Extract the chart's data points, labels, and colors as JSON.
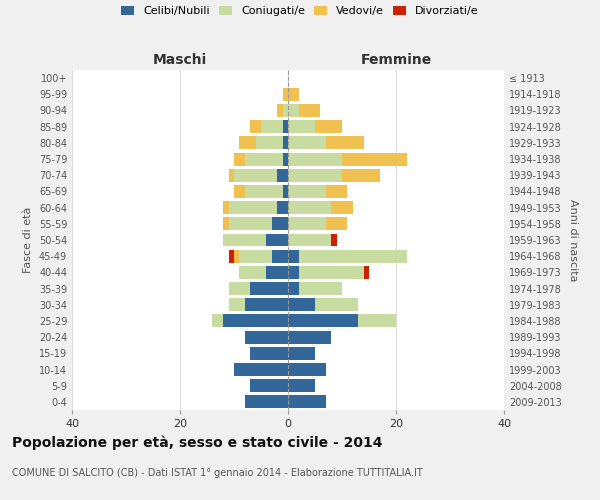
{
  "age_groups": [
    "0-4",
    "5-9",
    "10-14",
    "15-19",
    "20-24",
    "25-29",
    "30-34",
    "35-39",
    "40-44",
    "45-49",
    "50-54",
    "55-59",
    "60-64",
    "65-69",
    "70-74",
    "75-79",
    "80-84",
    "85-89",
    "90-94",
    "95-99",
    "100+"
  ],
  "birth_years": [
    "2009-2013",
    "2004-2008",
    "1999-2003",
    "1994-1998",
    "1989-1993",
    "1984-1988",
    "1979-1983",
    "1974-1978",
    "1969-1973",
    "1964-1968",
    "1959-1963",
    "1954-1958",
    "1949-1953",
    "1944-1948",
    "1939-1943",
    "1934-1938",
    "1929-1933",
    "1924-1928",
    "1919-1923",
    "1914-1918",
    "≤ 1913"
  ],
  "maschi_celibe": [
    8,
    7,
    10,
    7,
    8,
    12,
    8,
    7,
    4,
    3,
    4,
    3,
    2,
    1,
    2,
    1,
    1,
    1,
    0,
    0,
    0
  ],
  "maschi_coniugato": [
    0,
    0,
    0,
    0,
    0,
    2,
    3,
    4,
    5,
    6,
    8,
    8,
    9,
    7,
    8,
    7,
    5,
    4,
    1,
    0,
    0
  ],
  "maschi_vedovo": [
    0,
    0,
    0,
    0,
    0,
    0,
    0,
    0,
    0,
    1,
    0,
    1,
    1,
    2,
    1,
    2,
    3,
    2,
    1,
    1,
    0
  ],
  "maschi_divorziato": [
    0,
    0,
    0,
    0,
    0,
    0,
    0,
    0,
    0,
    1,
    0,
    0,
    0,
    0,
    0,
    0,
    0,
    0,
    0,
    0,
    0
  ],
  "femmine_celibe": [
    7,
    5,
    7,
    5,
    8,
    13,
    5,
    2,
    2,
    2,
    0,
    0,
    0,
    0,
    0,
    0,
    0,
    0,
    0,
    0,
    0
  ],
  "femmine_coniugata": [
    0,
    0,
    0,
    0,
    0,
    7,
    8,
    8,
    12,
    20,
    8,
    7,
    8,
    7,
    10,
    10,
    7,
    5,
    2,
    0,
    0
  ],
  "femmine_vedova": [
    0,
    0,
    0,
    0,
    0,
    0,
    0,
    0,
    0,
    0,
    0,
    4,
    4,
    4,
    7,
    12,
    7,
    5,
    4,
    2,
    0
  ],
  "femmine_divorziata": [
    0,
    0,
    0,
    0,
    0,
    0,
    0,
    0,
    1,
    0,
    1,
    0,
    0,
    0,
    0,
    0,
    0,
    0,
    0,
    0,
    0
  ],
  "colors": {
    "celibe": "#336699",
    "coniugato": "#c8dba0",
    "vedovo": "#f0c050",
    "divorziato": "#cc2200"
  },
  "xlim": 40,
  "title": "Popolazione per età, sesso e stato civile - 2014",
  "subtitle": "COMUNE DI SALCITO (CB) - Dati ISTAT 1° gennaio 2014 - Elaborazione TUTTITALIA.IT",
  "ylabel_left": "Fasce di età",
  "ylabel_right": "Anni di nascita",
  "xlabel_left": "Maschi",
  "xlabel_right": "Femmine",
  "bg_color": "#f0f0f0",
  "plot_bg_color": "#ffffff"
}
